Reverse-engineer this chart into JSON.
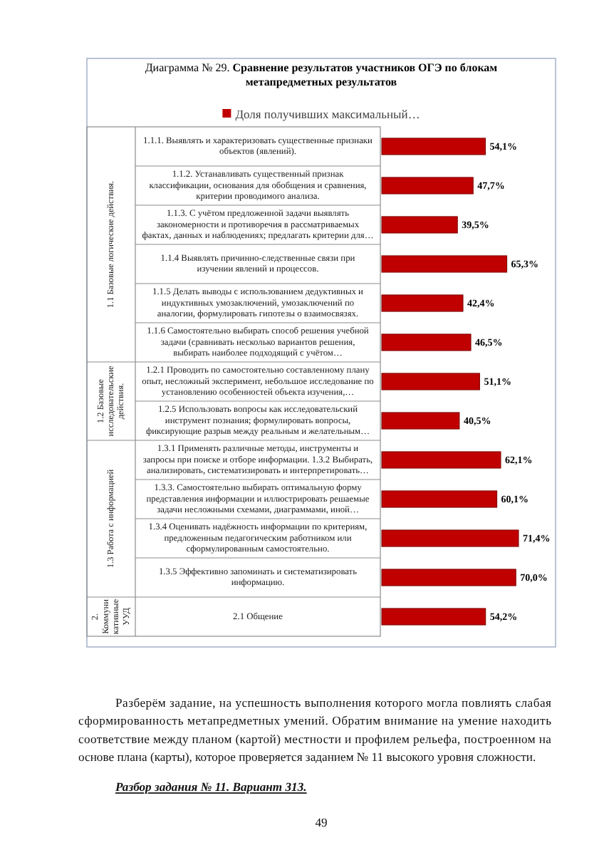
{
  "chart_data": {
    "type": "bar",
    "orientation": "horizontal",
    "title": "Диаграмма № 29. Сравнение результатов участников ОГЭ по блокам метапредметных результатов",
    "categories": [
      "1.1.1. Выявлять и характеризовать существенные признаки объектов (явлений).",
      "1.1.2. Устанавливать существенный признак классификации, основания для обобщения и сравнения, критерии проводимого анализа.",
      "1.1.3. С учётом предложенной задачи выявлять закономерности и противоречия в рассматриваемых фактах, данных и наблюдениях; предлагать критерии для…",
      "1.1.4 Выявлять причинно-следственные связи при изучении явлений и процессов.",
      "1.1.5 Делать выводы с использованием дедуктивных и индуктивных умозаключений, умозаключений по аналогии, формулировать гипотезы о взаимосвязях.",
      "1.1.6 Самостоятельно выбирать способ решения учебной задачи (сравнивать несколько вариантов решения, выбирать наиболее подходящий с учётом…",
      "1.2.1 Проводить по самостоятельно составленному плану опыт, несложный эксперимент, небольшое исследование по установлению особенностей объекта изучения,…",
      "1.2.5 Использовать вопросы как исследовательский инструмент познания; формулировать вопросы, фиксирующие разрыв между реальным и желательным…",
      "1.3.1 Применять различные методы, инструменты и запросы при поиске и отборе информации. 1.3.2 Выбирать, анализировать, систематизировать и интерпретировать…",
      "1.3.3. Самостоятельно выбирать оптимальную форму представления информации и иллюстрировать решаемые задачи несложными схемами, диаграммами, иной…",
      "1.3.4 Оценивать надёжность информации по критериям, предложенным педагогическим работником или сформулированным самостоятельно.",
      "1.3.5 Эффективно запоминать и систематизировать информацию.",
      "2.1 Общение"
    ],
    "series": [
      {
        "name": "Доля получивших максимальный…",
        "color": "#c00000",
        "values": [
          54.1,
          47.7,
          39.5,
          65.3,
          42.4,
          46.5,
          51.1,
          40.5,
          62.1,
          60.1,
          71.4,
          70.0,
          54.2
        ],
        "value_labels": [
          "54,1%",
          "47,7%",
          "39,5%",
          "65,3%",
          "42,4%",
          "46,5%",
          "51,1%",
          "40,5%",
          "62,1%",
          "60,1%",
          "71,4%",
          "70,0%",
          "54,2%"
        ]
      }
    ],
    "legend": "top",
    "annotations": [
      "1.1 Базовые логические действия.",
      "1.2 Базовые исследовательские действия.",
      "1.3 Работа с информацией",
      "2. Коммуникативные УУД",
      "Разберём задание, на успешность выполнения которого могла повлиять слабая сформированность метапредметных умений. Обратим внимание на умение находить соответствие между планом (картой) местности и профилем рельефа, построенном на основе плана (карты), которое проверяется заданием № 11 высокого уровня сложности.",
      "Разбор задания № 11. Вариант 313.",
      "49"
    ]
  }
}
